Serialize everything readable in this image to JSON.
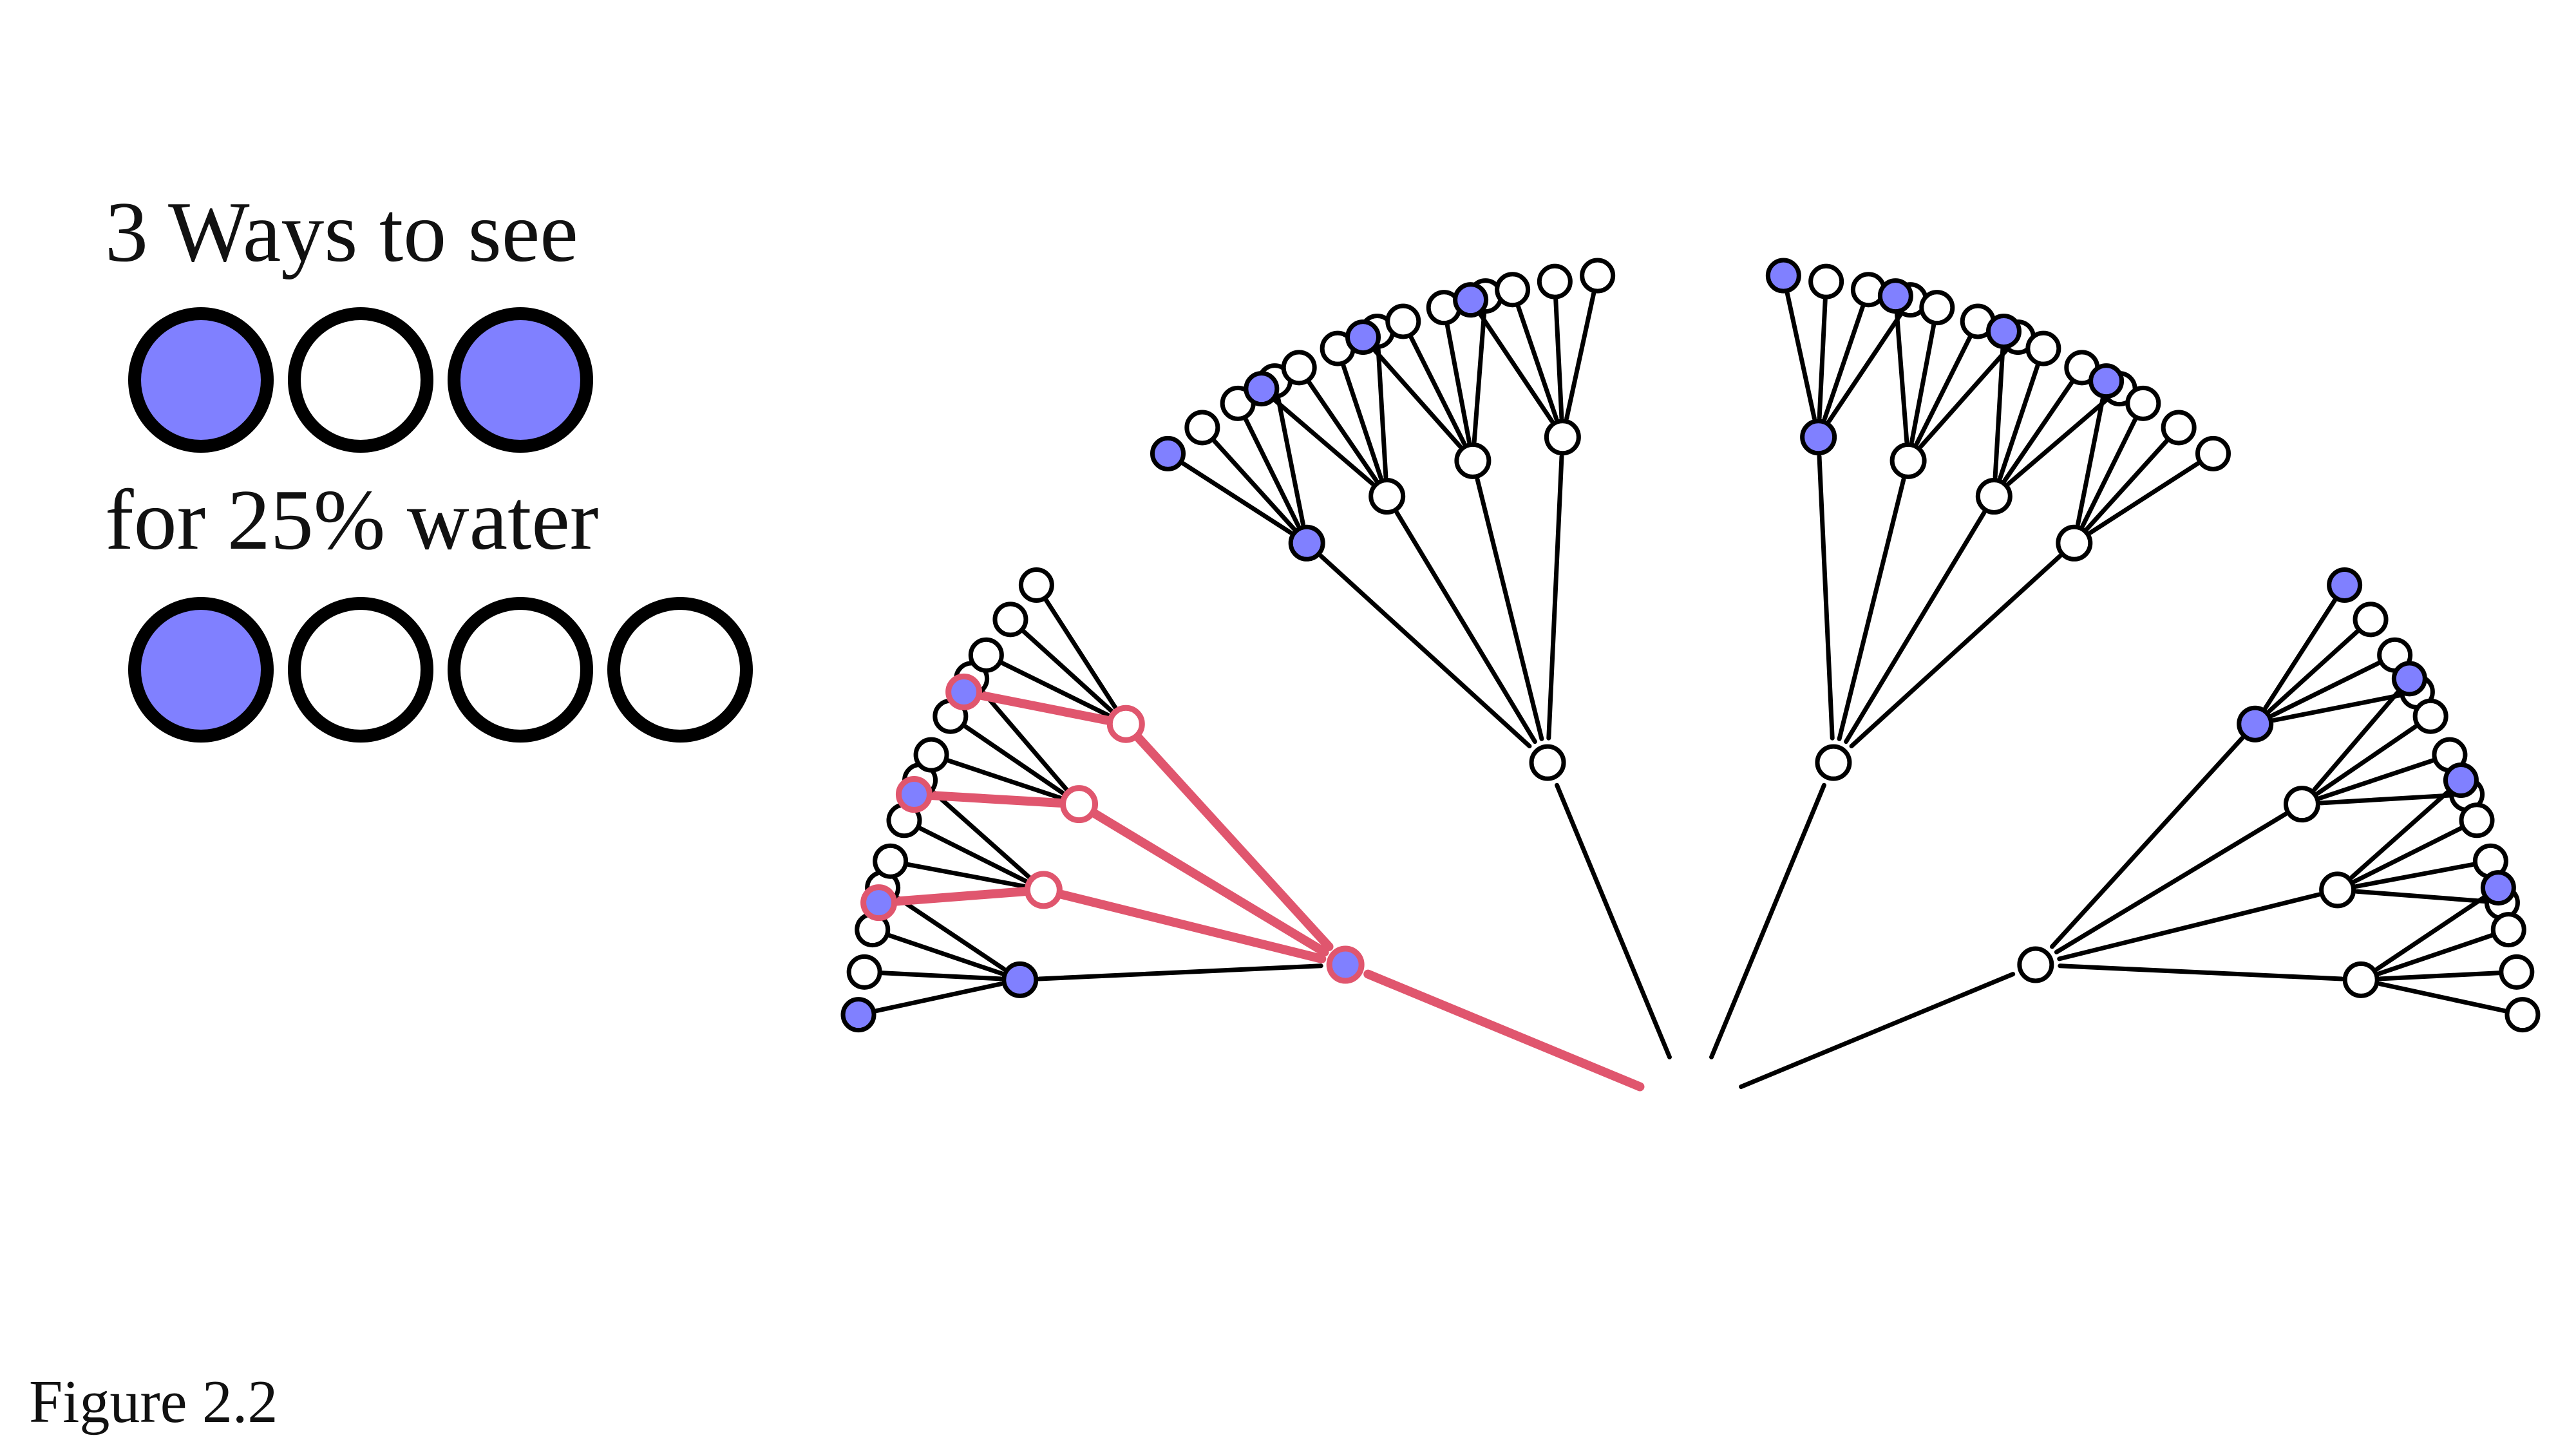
{
  "legend": {
    "heading": "3 Ways to see",
    "observation": [
      "water",
      "land",
      "water"
    ],
    "subheading": "for 25% water",
    "marble_bag": [
      "water",
      "land",
      "land",
      "land"
    ]
  },
  "caption": "Figure 2.2",
  "colors": {
    "water": "#8080ff",
    "land": "#ffffff",
    "outline": "#000000",
    "highlight": "#e0566e"
  },
  "garden": {
    "structure": "three draws from a bag of four marbles; each draw branches into four possibilities",
    "branch_order": [
      "water",
      "land",
      "land",
      "land"
    ],
    "highlighted_paths": [
      [
        "water",
        "land",
        "water"
      ],
      [
        "water",
        "land",
        "water"
      ],
      [
        "water",
        "land",
        "water"
      ]
    ]
  }
}
